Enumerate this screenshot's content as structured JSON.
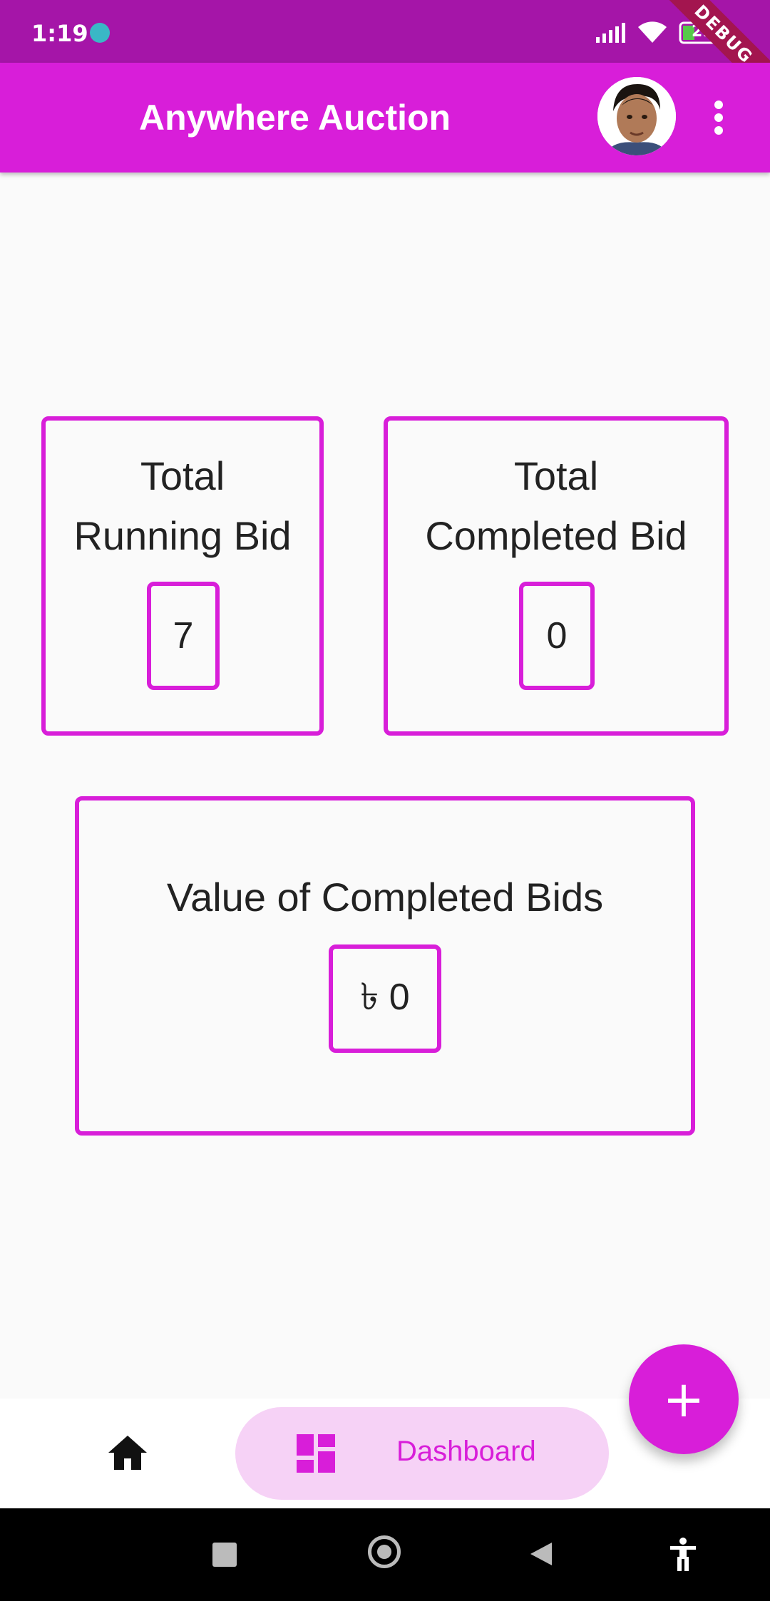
{
  "status_bar": {
    "time": "1:19",
    "battery": "29",
    "debug_banner": "DEBUG"
  },
  "app_bar": {
    "title": "Anywhere Auction",
    "avatar_icon": "user-avatar",
    "menu_icon": "more-vert-icon"
  },
  "cards": {
    "running": {
      "title_line1": "Total",
      "title_line2": "Running Bid",
      "value": "7"
    },
    "completed": {
      "title_line1": "Total",
      "title_line2": "Completed Bid",
      "value": "0"
    },
    "value_completed": {
      "title": "Value of Completed Bids",
      "value": "৳ 0"
    }
  },
  "bottom_nav": {
    "items": [
      {
        "icon": "home-icon",
        "label": ""
      },
      {
        "icon": "dashboard-icon",
        "label": "Dashboard"
      }
    ],
    "fab_icon": "plus-icon",
    "fab_label": "+"
  },
  "colors": {
    "status_bar": "#a515a8",
    "primary": "#d81ed9",
    "nav_pill": "#f6d2f6",
    "background": "#fafafa"
  }
}
